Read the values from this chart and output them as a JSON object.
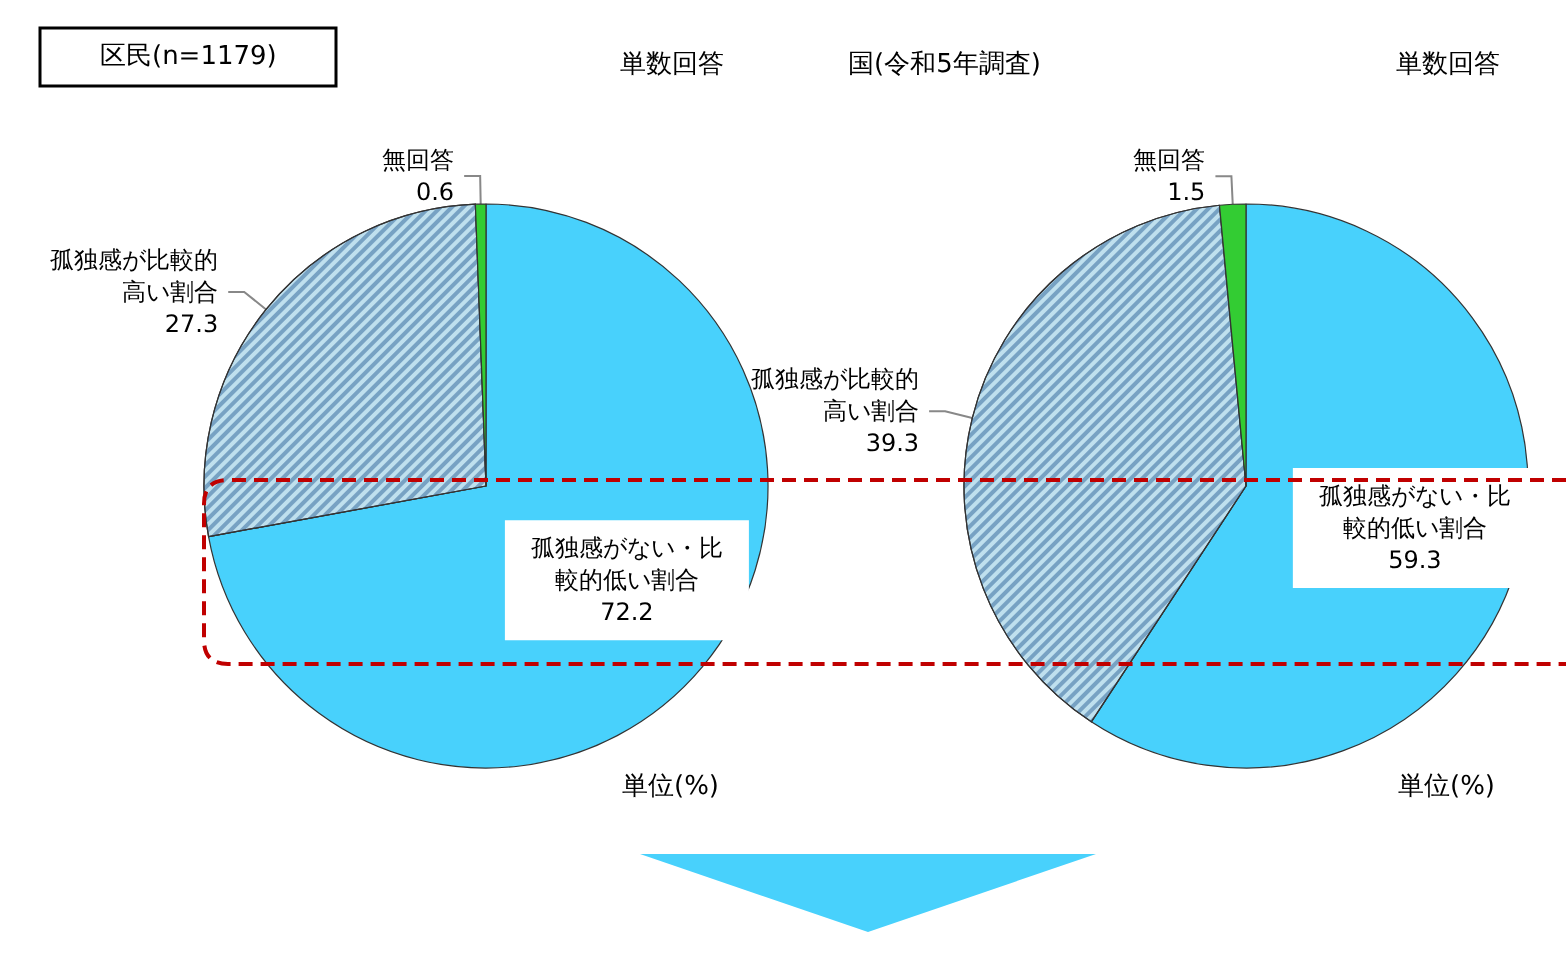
{
  "chart_data": [
    {
      "type": "pie",
      "title": "区民(n=1179)",
      "subtitle": "単数回答",
      "categories": [
        "孤独感がない・比較的低い割合",
        "孤独感が比較的高い割合",
        "無回答"
      ],
      "values": [
        72.2,
        27.3,
        0.6
      ],
      "colors": [
        "#48d1fc",
        "#bfe0ee",
        "#33cc33"
      ],
      "data_labels": true,
      "legend": false,
      "annotations": [
        "単位(%)"
      ]
    },
    {
      "type": "pie",
      "title": "国(令和5年調査)",
      "subtitle": "単数回答",
      "categories": [
        "孤独感がない・比較的低い割合",
        "孤独感が比較的高い割合",
        "無回答"
      ],
      "values": [
        59.3,
        39.3,
        1.5
      ],
      "colors": [
        "#48d1fc",
        "#bfe0ee",
        "#33cc33"
      ],
      "data_labels": true,
      "legend": false,
      "annotations": [
        "単位(%)"
      ]
    }
  ]
}
